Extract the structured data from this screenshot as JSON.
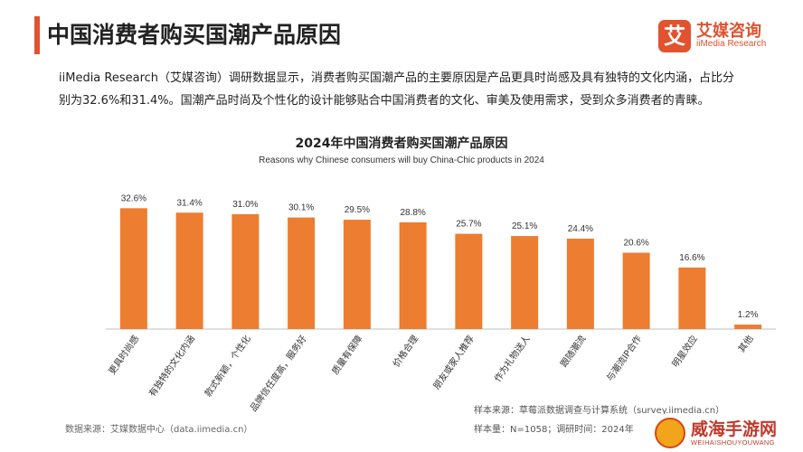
{
  "header": {
    "title": "中国消费者购买国潮产品原因",
    "brand_logo_char": "艾",
    "brand_cn": "艾媒咨询",
    "brand_en": "iiMedia Research",
    "accent_color": "#e2522f"
  },
  "intro_text": "iiMedia Research（艾媒咨询）调研数据显示，消费者购买国潮产品的主要原因是产品更具时尚感及具有独特的文化内涵，占比分别为32.6%和31.4%。国潮产品时尚及个性化的设计能够贴合中国消费者的文化、审美及使用需求，受到众多消费者的青睐。",
  "chart_data": {
    "type": "bar",
    "title": "2024年中国消费者购买国潮产品原因",
    "subtitle": "Reasons why Chinese consumers will buy China-Chic products in 2024",
    "categories": [
      "更具时尚感",
      "有独特的文化内涵",
      "款式新颖，个性化",
      "品牌信任度高，服务好",
      "质量有保障",
      "价格合理",
      "朋友或家人推荐",
      "作为礼物送人",
      "跟随潮流",
      "与潮流IP合作",
      "明星效应",
      "其他"
    ],
    "values": [
      32.6,
      31.4,
      31.0,
      30.1,
      29.5,
      28.8,
      25.7,
      25.1,
      24.4,
      20.6,
      16.6,
      1.2
    ],
    "value_labels": [
      "32.6%",
      "31.4%",
      "31.0%",
      "30.1%",
      "29.5%",
      "28.8%",
      "25.7%",
      "25.1%",
      "24.4%",
      "20.6%",
      "16.6%",
      "1.2%"
    ],
    "ylim": [
      0,
      40
    ],
    "bar_color": "#ed7d31",
    "grid": false,
    "legend": "none"
  },
  "footer": {
    "source_left": "数据来源：艾媒数据中心（data.iimedia.cn）",
    "source_right_1": "样本来源：草莓派数据调查与计算系统（survey.iimedia.cn）",
    "source_right_2": "样本量：N=1058；调研时间：2024年"
  },
  "watermark": {
    "title": "威海手游网",
    "subtitle": "WEIHAISHOUYOUWANG"
  }
}
